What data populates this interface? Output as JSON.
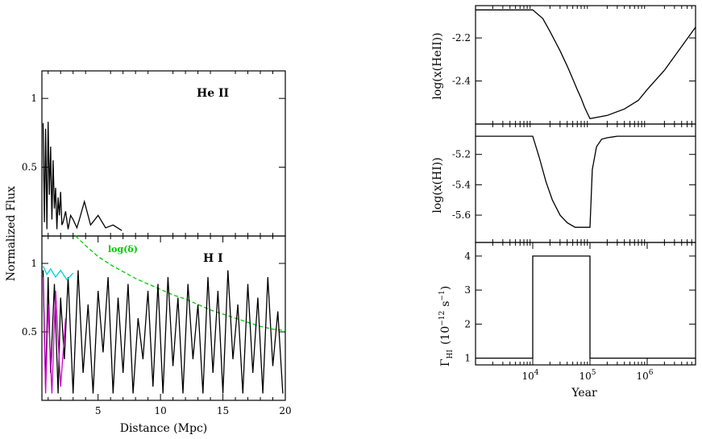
{
  "chart_data": [
    {
      "type": "line",
      "panel": "left-top",
      "annotation": "He II",
      "ylabel": "Normalized Flux",
      "xlim": [
        0.5,
        20
      ],
      "ylim": [
        0,
        1.2
      ],
      "yticks": [
        0.5,
        1
      ],
      "ytick_labels": [
        "0.5",
        "1"
      ],
      "series": [
        {
          "color": "#000000",
          "x": [
            0.6,
            0.7,
            0.8,
            0.9,
            1.0,
            1.1,
            1.2,
            1.3,
            1.4,
            1.5,
            1.6,
            1.7,
            1.8,
            1.9,
            2.0,
            2.1,
            2.2,
            2.4,
            2.6,
            2.8,
            3.0,
            3.3,
            3.5,
            3.9,
            4.4,
            5.0,
            5.6,
            6.2,
            6.9
          ],
          "values": [
            0.82,
            0.1,
            0.78,
            0.05,
            0.83,
            0.3,
            0.65,
            0.12,
            0.55,
            0.2,
            0.35,
            0.05,
            0.28,
            0.15,
            0.32,
            0.08,
            0.1,
            0.18,
            0.05,
            0.15,
            0.12,
            0.06,
            0.12,
            0.25,
            0.08,
            0.15,
            0.06,
            0.08,
            0.04
          ]
        }
      ]
    },
    {
      "type": "line",
      "panel": "left-bottom",
      "annotation": "H I",
      "xlabel": "Distance (Mpc)",
      "xlim": [
        0.5,
        20
      ],
      "ylim": [
        0,
        1.2
      ],
      "xticks": [
        5,
        10,
        15,
        20
      ],
      "xtick_labels": [
        "5",
        "10",
        "15",
        "20"
      ],
      "yticks": [
        0.5,
        1
      ],
      "ytick_labels": [
        "0.5",
        "1"
      ],
      "series": [
        {
          "name": "log(δ)",
          "color": "#00cc00",
          "dashed": true,
          "x": [
            3.2,
            4,
            5,
            6,
            7,
            8,
            9,
            10,
            11,
            12,
            13,
            14,
            15,
            16,
            17,
            18,
            19,
            20
          ],
          "values": [
            1.2,
            1.13,
            1.05,
            0.99,
            0.94,
            0.89,
            0.85,
            0.81,
            0.77,
            0.74,
            0.7,
            0.66,
            0.63,
            0.6,
            0.57,
            0.54,
            0.52,
            0.51
          ]
        },
        {
          "color": "#000000",
          "x": [
            0.6,
            0.8,
            1.0,
            1.2,
            1.5,
            1.8,
            2.0,
            2.3,
            2.6,
            3.0,
            3.4,
            3.8,
            4.2,
            4.6,
            5.0,
            5.4,
            5.8,
            6.2,
            6.6,
            7.0,
            7.4,
            7.8,
            8.2,
            8.6,
            9.0,
            9.4,
            9.8,
            10.2,
            10.6,
            11.0,
            11.4,
            11.8,
            12.2,
            12.6,
            13.0,
            13.4,
            13.8,
            14.2,
            14.6,
            15.0,
            15.4,
            15.8,
            16.2,
            16.6,
            17.0,
            17.4,
            17.8,
            18.2,
            18.6,
            19.0,
            19.4,
            19.8
          ],
          "values": [
            0.95,
            0.1,
            0.9,
            0.2,
            0.85,
            0.05,
            0.75,
            0.3,
            0.9,
            0.05,
            0.95,
            0.2,
            0.7,
            0.05,
            0.8,
            0.35,
            0.9,
            0.05,
            0.75,
            0.2,
            0.85,
            0.05,
            0.6,
            0.3,
            0.8,
            0.1,
            0.85,
            0.05,
            0.9,
            0.25,
            0.75,
            0.05,
            0.85,
            0.3,
            0.7,
            0.05,
            0.9,
            0.2,
            0.8,
            0.05,
            0.95,
            0.3,
            0.7,
            0.05,
            0.85,
            0.2,
            0.75,
            0.05,
            0.9,
            0.25,
            0.65,
            0.05
          ]
        },
        {
          "color": "#00d0d0",
          "x": [
            0.6,
            0.9,
            1.2,
            1.6,
            2.0,
            2.5,
            3.0
          ],
          "values": [
            0.98,
            0.92,
            0.96,
            0.9,
            0.95,
            0.88,
            0.93
          ]
        },
        {
          "color": "#cc00cc",
          "x": [
            0.6,
            0.8,
            1.0,
            1.3,
            1.6,
            2.0,
            2.4
          ],
          "values": [
            0.9,
            0.05,
            0.7,
            0.05,
            0.8,
            0.1,
            0.6
          ]
        }
      ]
    },
    {
      "type": "line",
      "panel": "right-top",
      "ylabel": "log(x(HeII))",
      "xscale": "log",
      "xlim": [
        1000,
        7000000
      ],
      "ylim": [
        -2.6,
        -2.05
      ],
      "yticks": [
        -2.2,
        -2.4
      ],
      "ytick_labels": [
        "-2.2",
        "-2.4"
      ],
      "series": [
        {
          "color": "#000000",
          "x": [
            1000,
            10000,
            15000,
            20000,
            30000,
            40000,
            50000,
            60000,
            70000,
            80000,
            90000,
            100000,
            200000,
            400000,
            700000,
            1000000,
            2000000,
            4000000,
            7000000
          ],
          "values": [
            -2.07,
            -2.07,
            -2.11,
            -2.17,
            -2.26,
            -2.33,
            -2.39,
            -2.44,
            -2.48,
            -2.52,
            -2.55,
            -2.575,
            -2.56,
            -2.53,
            -2.49,
            -2.44,
            -2.35,
            -2.24,
            -2.15
          ]
        }
      ]
    },
    {
      "type": "line",
      "panel": "right-middle",
      "ylabel": "log(x(HI))",
      "xscale": "log",
      "xlim": [
        1000,
        7000000
      ],
      "ylim": [
        -5.78,
        -5.0
      ],
      "yticks": [
        -5.2,
        -5.4,
        -5.6
      ],
      "ytick_labels": [
        "-5.2",
        "-5.4",
        "-5.6"
      ],
      "series": [
        {
          "color": "#000000",
          "x": [
            1000,
            10000,
            13000,
            17000,
            22000,
            30000,
            40000,
            55000,
            70000,
            90000,
            100000,
            110000,
            130000,
            160000,
            200000,
            300000,
            500000,
            1000000,
            7000000
          ],
          "values": [
            -5.08,
            -5.08,
            -5.22,
            -5.38,
            -5.5,
            -5.6,
            -5.65,
            -5.68,
            -5.68,
            -5.68,
            -5.68,
            -5.3,
            -5.15,
            -5.1,
            -5.09,
            -5.08,
            -5.08,
            -5.08,
            -5.08
          ]
        }
      ]
    },
    {
      "type": "line",
      "panel": "right-bottom",
      "ylabel": "Γ",
      "ylabel_sub": "HI",
      "ylabel_unit": "(10",
      "ylabel_exp1": "−12",
      "ylabel_unit2": "s",
      "ylabel_exp2": "−1",
      "ylabel_close": ")",
      "xlabel": "Year",
      "xscale": "log",
      "xlim": [
        1000,
        7000000
      ],
      "ylim": [
        0.8,
        4.4
      ],
      "xticks": [
        10000,
        100000,
        1000000
      ],
      "xtick_base": "10",
      "xtick_exps": [
        "4",
        "5",
        "6"
      ],
      "yticks": [
        1,
        2,
        3,
        4
      ],
      "ytick_labels": [
        "1",
        "2",
        "3",
        "4"
      ],
      "series": [
        {
          "color": "#000000",
          "x": [
            1000,
            10000,
            10000,
            100000,
            100000,
            7000000
          ],
          "values": [
            1,
            1,
            4,
            4,
            1,
            1
          ]
        }
      ]
    }
  ]
}
